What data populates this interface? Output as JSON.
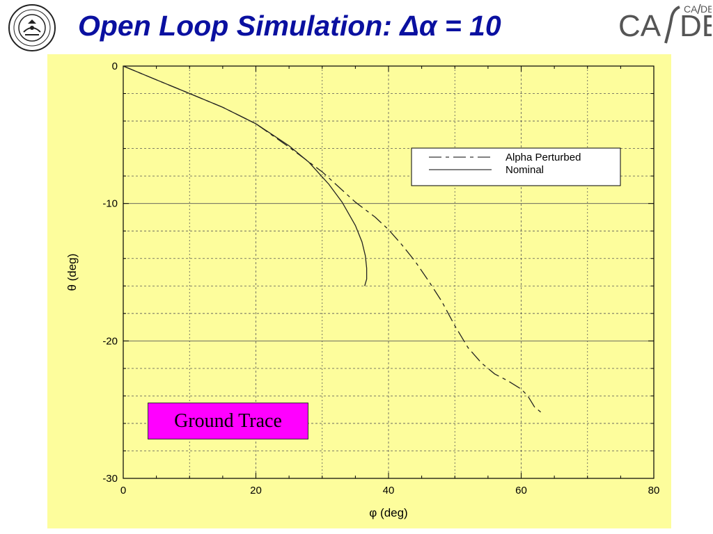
{
  "slide": {
    "title": "Open Loop Simulation: Δα = 10",
    "title_color": "#0a10a0",
    "logo_left": "IIT Bombay seal",
    "logo_right": "CA/DE",
    "logo_right_color": "#555555",
    "panel_color": "#fdfd9c",
    "annotation_label": "Ground Trace",
    "annotation_color": "#ff00ff"
  },
  "chart_data": {
    "type": "line",
    "title": "",
    "xlabel": "φ (deg)",
    "ylabel": "θ (deg)",
    "xlim": [
      0,
      80
    ],
    "ylim": [
      -30,
      0
    ],
    "xticks": [
      "0",
      "20",
      "40",
      "60",
      "80"
    ],
    "yticks": [
      "0",
      "-10",
      "-20",
      "-30"
    ],
    "grid": "dashed",
    "legend_position": "top-right",
    "series": [
      {
        "name": "Alpha Perturbed",
        "style": "dash-dot",
        "x": [
          0,
          5,
          10,
          15,
          20,
          25,
          30,
          35,
          38,
          40,
          42,
          44,
          46,
          48,
          50,
          52,
          54,
          56,
          58,
          60,
          61,
          62,
          63,
          63.5
        ],
        "y": [
          0,
          -1.0,
          -2.0,
          -3.0,
          -4.2,
          -5.9,
          -7.7,
          -9.9,
          -11.0,
          -11.9,
          -13.0,
          -14.2,
          -15.6,
          -17.1,
          -18.9,
          -20.5,
          -21.6,
          -22.4,
          -22.9,
          -23.5,
          -24.0,
          -24.8,
          -25.2,
          -25.3
        ]
      },
      {
        "name": "Nominal",
        "style": "solid",
        "x": [
          0,
          5,
          10,
          15,
          20,
          25,
          28,
          31,
          33,
          35,
          36,
          36.5,
          36.7,
          36.7,
          36.4
        ],
        "y": [
          0,
          -1.0,
          -2.0,
          -3.0,
          -4.2,
          -5.8,
          -7.0,
          -8.6,
          -9.9,
          -11.6,
          -12.8,
          -13.8,
          -14.7,
          -15.5,
          -16.0
        ]
      }
    ]
  }
}
